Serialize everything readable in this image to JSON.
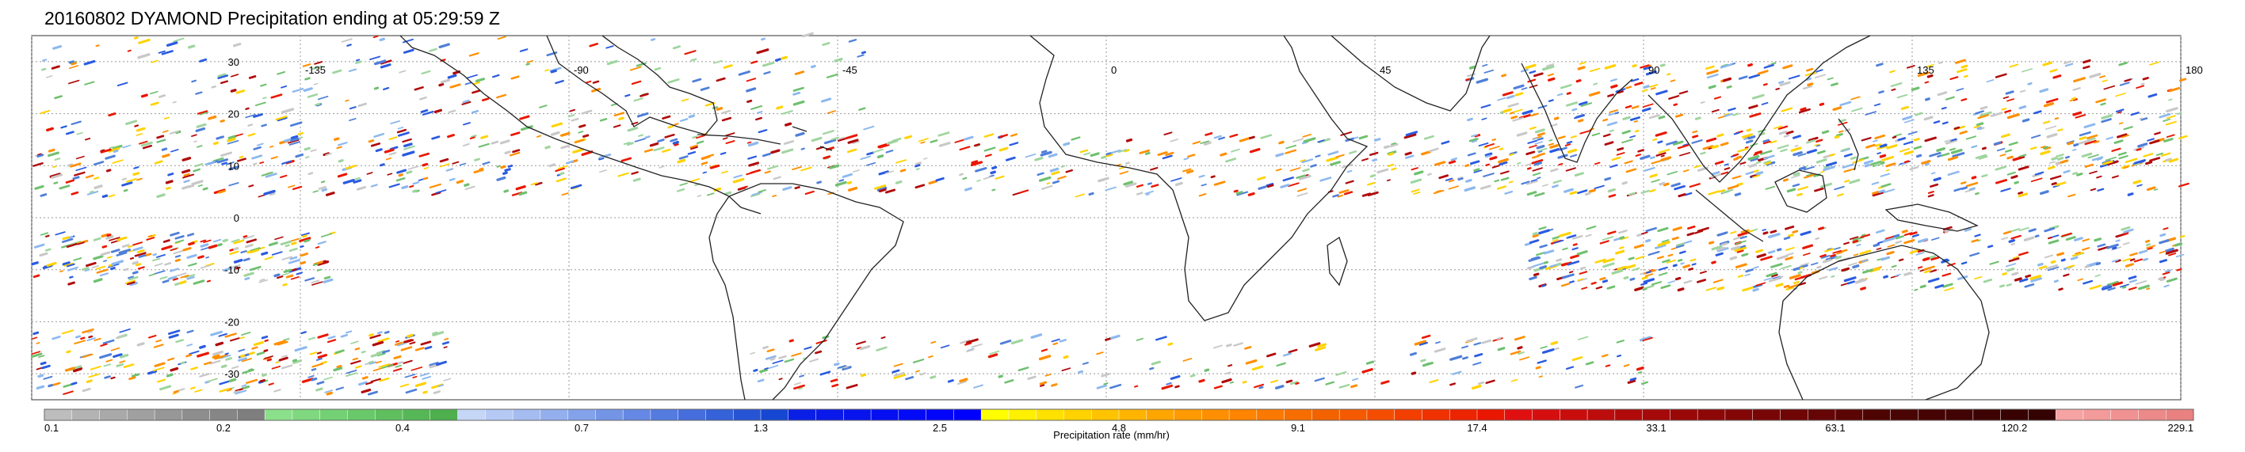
{
  "title": "20160802 DYAMOND Precipitation ending at 05:29:59 Z",
  "map": {
    "lon_labels": [
      "-135",
      "-90",
      "-45",
      "0",
      "45",
      "90",
      "135",
      "180"
    ],
    "lat_labels": [
      "30",
      "20",
      "10",
      "0",
      "-10",
      "-20",
      "-30"
    ],
    "lon_values": [
      -135,
      -90,
      -45,
      0,
      45,
      90,
      135,
      180
    ],
    "lat_values": [
      30,
      20,
      10,
      0,
      -10,
      -20,
      -30
    ],
    "lon_range": [
      -180,
      180
    ],
    "lat_range": [
      -35,
      35
    ],
    "gridlines": true
  },
  "colorbar": {
    "label": "Precipitation rate (mm/hr)",
    "ticks": [
      "0.1",
      "0.2",
      "0.4",
      "0.7",
      "1.3",
      "2.5",
      "4.8",
      "9.1",
      "17.4",
      "33.1",
      "63.1",
      "120.2",
      "229.1"
    ],
    "colors": [
      "#bdbdbd",
      "#b3b3b3",
      "#a9a9a9",
      "#a0a0a0",
      "#979797",
      "#8e8e8e",
      "#868686",
      "#7e7e7e",
      "#8be08b",
      "#7fd87f",
      "#74d074",
      "#69c869",
      "#5fbf5f",
      "#56b756",
      "#4daf4d",
      "#c6d6f7",
      "#b6c9f4",
      "#a5bcf0",
      "#94afed",
      "#84a2ea",
      "#7495e6",
      "#6488e3",
      "#547be0",
      "#456edc",
      "#3561d9",
      "#2654d5",
      "#1647d2",
      "#0a1fe6",
      "#0819ea",
      "#0714ee",
      "#050ff2",
      "#030af6",
      "#0205fa",
      "#0000ff",
      "#ffff00",
      "#fff000",
      "#ffe100",
      "#ffd200",
      "#ffc300",
      "#ffb400",
      "#ffa500",
      "#ff9a00",
      "#ff8f00",
      "#ff8400",
      "#fb7900",
      "#f76e00",
      "#f26300",
      "#f55a00",
      "#f44d00",
      "#f23f00",
      "#ef3200",
      "#ec2400",
      "#e91700",
      "#e01010",
      "#d50f0f",
      "#c90d0d",
      "#bd0c0c",
      "#b10a0a",
      "#a50909",
      "#990707",
      "#8d0707",
      "#830606",
      "#790606",
      "#6f0505",
      "#650505",
      "#5b0404",
      "#4f0404",
      "#4a0404",
      "#460303",
      "#410303",
      "#3d0303",
      "#380202",
      "#340202",
      "#f6a3a3",
      "#f39a9a",
      "#f09292",
      "#ec8989",
      "#e98181"
    ]
  }
}
